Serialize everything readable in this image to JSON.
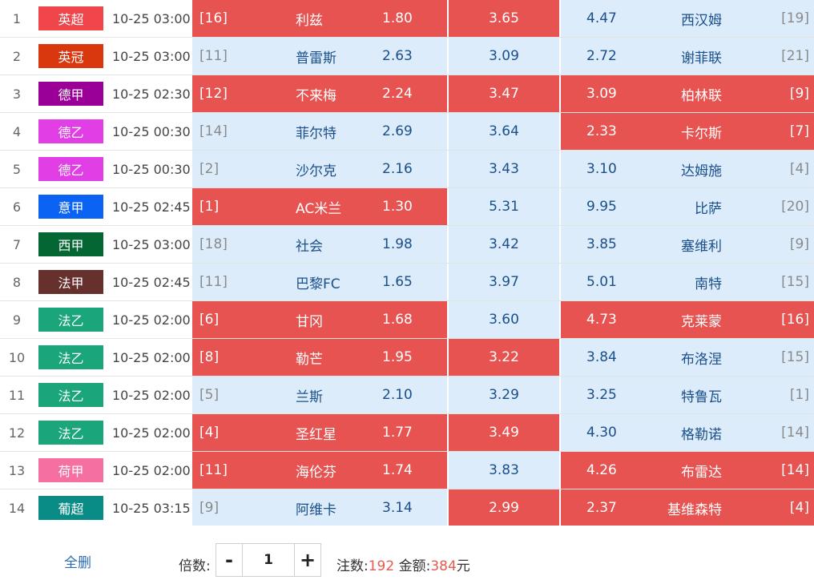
{
  "colors": {
    "selected_red": "#e65350",
    "unselected_blue": "#dcecfa",
    "team_blue": "#1a4f8a",
    "highlight_number": "#e55b4e"
  },
  "matches": [
    {
      "no": "1",
      "league": "英超",
      "league_color": "#f0454a",
      "time": "10-25 03:00",
      "home_rank": "[16]",
      "home": "利兹",
      "home_odd": "1.80",
      "draw_odd": "3.65",
      "away_odd": "4.47",
      "away": "西汉姆",
      "away_rank": "[19]",
      "sel_home": true,
      "sel_draw": true,
      "sel_away": false
    },
    {
      "no": "2",
      "league": "英冠",
      "league_color": "#d9380f",
      "time": "10-25 03:00",
      "home_rank": "[11]",
      "home": "普雷斯",
      "home_odd": "2.63",
      "draw_odd": "3.09",
      "away_odd": "2.72",
      "away": "谢菲联",
      "away_rank": "[21]",
      "sel_home": false,
      "sel_draw": false,
      "sel_away": false
    },
    {
      "no": "3",
      "league": "德甲",
      "league_color": "#9a0098",
      "time": "10-25 02:30",
      "home_rank": "[12]",
      "home": "不来梅",
      "home_odd": "2.24",
      "draw_odd": "3.47",
      "away_odd": "3.09",
      "away": "柏林联",
      "away_rank": "[9]",
      "sel_home": true,
      "sel_draw": true,
      "sel_away": true
    },
    {
      "no": "4",
      "league": "德乙",
      "league_color": "#e23ee6",
      "time": "10-25 00:30",
      "home_rank": "[14]",
      "home": "菲尔特",
      "home_odd": "2.69",
      "draw_odd": "3.64",
      "away_odd": "2.33",
      "away": "卡尔斯",
      "away_rank": "[7]",
      "sel_home": false,
      "sel_draw": false,
      "sel_away": true
    },
    {
      "no": "5",
      "league": "德乙",
      "league_color": "#e23ee6",
      "time": "10-25 00:30",
      "home_rank": "[2]",
      "home": "沙尔克",
      "home_odd": "2.16",
      "draw_odd": "3.43",
      "away_odd": "3.10",
      "away": "达姆施",
      "away_rank": "[4]",
      "sel_home": false,
      "sel_draw": false,
      "sel_away": false
    },
    {
      "no": "6",
      "league": "意甲",
      "league_color": "#0a63f2",
      "time": "10-25 02:45",
      "home_rank": "[1]",
      "home": "AC米兰",
      "home_odd": "1.30",
      "draw_odd": "5.31",
      "away_odd": "9.95",
      "away": "比萨",
      "away_rank": "[20]",
      "sel_home": true,
      "sel_draw": false,
      "sel_away": false
    },
    {
      "no": "7",
      "league": "西甲",
      "league_color": "#046633",
      "time": "10-25 03:00",
      "home_rank": "[18]",
      "home": "社会",
      "home_odd": "1.98",
      "draw_odd": "3.42",
      "away_odd": "3.85",
      "away": "塞维利",
      "away_rank": "[9]",
      "sel_home": false,
      "sel_draw": false,
      "sel_away": false
    },
    {
      "no": "8",
      "league": "法甲",
      "league_color": "#66302c",
      "time": "10-25 02:45",
      "home_rank": "[11]",
      "home": "巴黎FC",
      "home_odd": "1.65",
      "draw_odd": "3.97",
      "away_odd": "5.01",
      "away": "南特",
      "away_rank": "[15]",
      "sel_home": false,
      "sel_draw": false,
      "sel_away": false
    },
    {
      "no": "9",
      "league": "法乙",
      "league_color": "#1aa67a",
      "time": "10-25 02:00",
      "home_rank": "[6]",
      "home": "甘冈",
      "home_odd": "1.68",
      "draw_odd": "3.60",
      "away_odd": "4.73",
      "away": "克莱蒙",
      "away_rank": "[16]",
      "sel_home": true,
      "sel_draw": false,
      "sel_away": true
    },
    {
      "no": "10",
      "league": "法乙",
      "league_color": "#1aa67a",
      "time": "10-25 02:00",
      "home_rank": "[8]",
      "home": "勒芒",
      "home_odd": "1.95",
      "draw_odd": "3.22",
      "away_odd": "3.84",
      "away": "布洛涅",
      "away_rank": "[15]",
      "sel_home": true,
      "sel_draw": true,
      "sel_away": false
    },
    {
      "no": "11",
      "league": "法乙",
      "league_color": "#1aa67a",
      "time": "10-25 02:00",
      "home_rank": "[5]",
      "home": "兰斯",
      "home_odd": "2.10",
      "draw_odd": "3.29",
      "away_odd": "3.25",
      "away": "特鲁瓦",
      "away_rank": "[1]",
      "sel_home": false,
      "sel_draw": false,
      "sel_away": false
    },
    {
      "no": "12",
      "league": "法乙",
      "league_color": "#1aa67a",
      "time": "10-25 02:00",
      "home_rank": "[4]",
      "home": "圣红星",
      "home_odd": "1.77",
      "draw_odd": "3.49",
      "away_odd": "4.30",
      "away": "格勒诺",
      "away_rank": "[14]",
      "sel_home": true,
      "sel_draw": true,
      "sel_away": false
    },
    {
      "no": "13",
      "league": "荷甲",
      "league_color": "#f56fa0",
      "time": "10-25 02:00",
      "home_rank": "[11]",
      "home": "海伦芬",
      "home_odd": "1.74",
      "draw_odd": "3.83",
      "away_odd": "4.26",
      "away": "布雷达",
      "away_rank": "[14]",
      "sel_home": true,
      "sel_draw": false,
      "sel_away": true
    },
    {
      "no": "14",
      "league": "葡超",
      "league_color": "#0a8c86",
      "time": "10-25 03:15",
      "home_rank": "[9]",
      "home": "阿维卡",
      "home_odd": "3.14",
      "draw_odd": "2.99",
      "away_odd": "2.37",
      "away": "基维森特",
      "away_rank": "[4]",
      "sel_home": false,
      "sel_draw": true,
      "sel_away": true
    }
  ],
  "footer": {
    "clear_label": "全删",
    "multiplier_label": "倍数:",
    "minus": "-",
    "plus": "+",
    "multiplier_value": "1",
    "bets_label": "注数:",
    "bets_value": "192",
    "amount_label": "金额:",
    "amount_value": "384",
    "amount_unit": "元"
  }
}
